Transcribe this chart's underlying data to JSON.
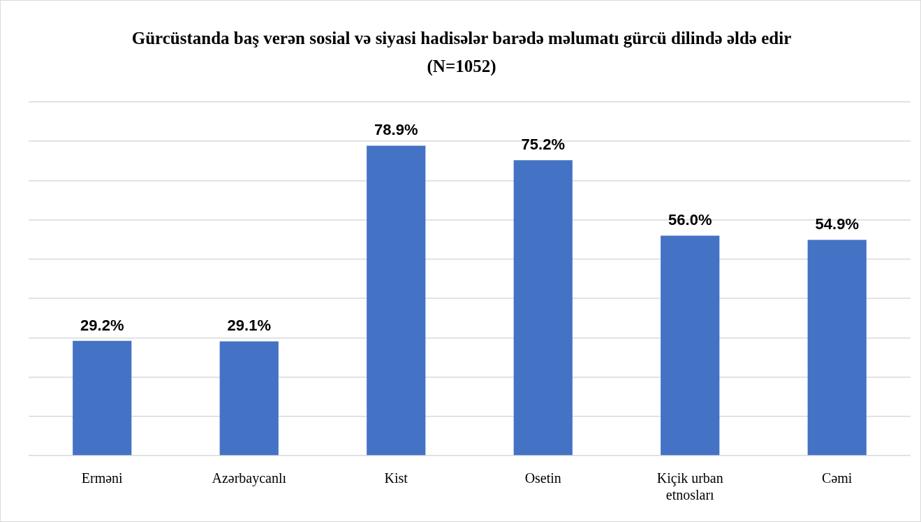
{
  "chart_data": {
    "type": "bar",
    "title": "Gürcüstanda baş verən sosial və siyasi hadisələr barədə məlumatı gürcü dilində əldə edir (N=1052)",
    "categories": [
      "Erməni",
      "Azərbaycanlı",
      "Kist",
      "Osetin",
      "Kiçik urban etnosları",
      "Cəmi"
    ],
    "values": [
      29.2,
      29.1,
      78.9,
      75.2,
      56.0,
      54.9
    ],
    "value_labels": [
      "29.2%",
      "29.1%",
      "78.9%",
      "75.2%",
      "56.0%",
      "54.9%"
    ],
    "color": "#4472c4",
    "ylim": [
      0,
      90
    ],
    "yticks": [
      {
        "value": 0,
        "label": null
      },
      {
        "value": 10,
        "label": null
      },
      {
        "value": 20,
        "label": null
      },
      {
        "value": 30,
        "label": null
      },
      {
        "value": 40,
        "label": null
      },
      {
        "value": 50,
        "label": null
      },
      {
        "value": 60,
        "label": null
      },
      {
        "value": 70,
        "label": null
      },
      {
        "value": 80,
        "label": null
      },
      {
        "value": 90,
        "label": null
      }
    ],
    "grid": "y",
    "tick_labels": "x",
    "legend": false
  }
}
